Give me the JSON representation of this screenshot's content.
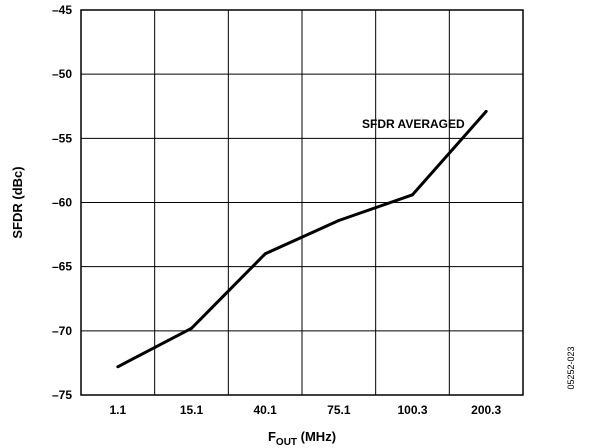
{
  "chart_data": {
    "type": "line",
    "categories": [
      "1.1",
      "15.1",
      "40.1",
      "75.1",
      "100.3",
      "200.3"
    ],
    "series": [
      {
        "name": "SFDR AVERAGED",
        "values": [
          -72.8,
          -69.8,
          -64.0,
          -61.4,
          -59.4,
          -52.9
        ]
      }
    ],
    "xlabel": {
      "main": "F",
      "sub": "OUT",
      "suffix": " (MHz)"
    },
    "ylabel": "SFDR (dBc)",
    "ylim": [
      -75,
      -45
    ],
    "yticks": [
      -45,
      -50,
      -55,
      -60,
      -65,
      -70,
      -75
    ],
    "ytick_labels": [
      "–45",
      "–50",
      "–55",
      "–60",
      "–65",
      "–70",
      "–75"
    ],
    "grid": true,
    "annotation": "SFDR AVERAGED",
    "figure_id": "05252-023"
  }
}
